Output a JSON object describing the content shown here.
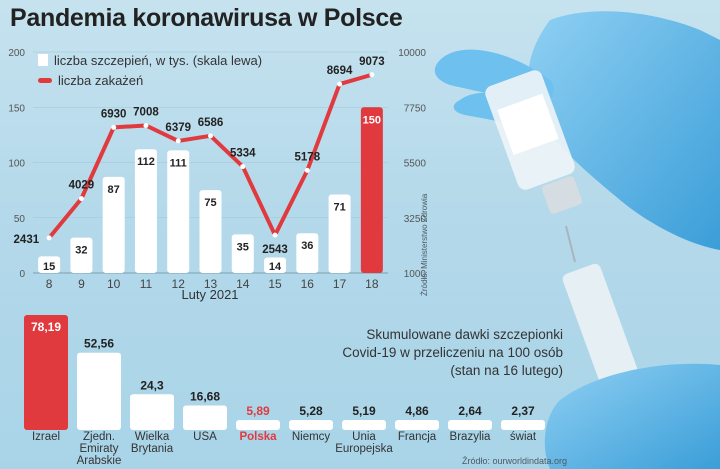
{
  "title": "Pandemia koronawirusa w Polsce",
  "colors": {
    "accent": "#e03a3e",
    "bar": "#ffffff"
  },
  "chart_data": [
    {
      "type": "bar",
      "categories": [
        "8",
        "9",
        "10",
        "11",
        "12",
        "13",
        "14",
        "15",
        "16",
        "17",
        "18"
      ],
      "xlabel": "Luty 2021",
      "series": [
        {
          "name": "liczba szczepień, w tys. (skala lewa)",
          "type": "bar",
          "axis": "left",
          "values": [
            15,
            32,
            87,
            112,
            111,
            75,
            35,
            14,
            36,
            71,
            150
          ],
          "highlight_index": 10
        },
        {
          "name": "liczba zakażeń",
          "type": "line",
          "axis": "right",
          "values": [
            2431,
            4029,
            6930,
            7008,
            6379,
            6586,
            5334,
            2543,
            5178,
            8694,
            9073
          ]
        }
      ],
      "ylim_left": [
        0,
        200
      ],
      "yticks_left": [
        "0",
        "50",
        "100",
        "150",
        "200"
      ],
      "ylim_right": [
        1000,
        10000
      ],
      "yticks_right": [
        "1000",
        "3250",
        "5500",
        "7750",
        "10000"
      ],
      "source": "Źródło: Ministerstwo Zdrowia"
    },
    {
      "type": "bar",
      "title_lines": [
        "Skumulowane dawki szczepionki",
        "Covid-19 w przeliczeniu na 100 osób",
        "(stan na 16 lutego)"
      ],
      "categories": [
        [
          "Izrael"
        ],
        [
          "Zjedn.",
          "Emiraty",
          "Arabskie"
        ],
        [
          "Wielka",
          "Brytania"
        ],
        [
          "USA"
        ],
        [
          "Polska"
        ],
        [
          "Niemcy"
        ],
        [
          "Unia",
          "Europejska"
        ],
        [
          "Francja"
        ],
        [
          "Brazylia"
        ],
        [
          "świat"
        ]
      ],
      "value_labels": [
        "78,19",
        "52,56",
        "24,3",
        "16,68",
        "5,89",
        "5,28",
        "5,19",
        "4,86",
        "2,64",
        "2,37"
      ],
      "values": [
        78.19,
        52.56,
        24.3,
        16.68,
        5.89,
        5.28,
        5.19,
        4.86,
        2.64,
        2.37
      ],
      "highlight": [
        "Izrael",
        "Polska"
      ],
      "source": "Źródło: ourworldindata.org"
    }
  ]
}
